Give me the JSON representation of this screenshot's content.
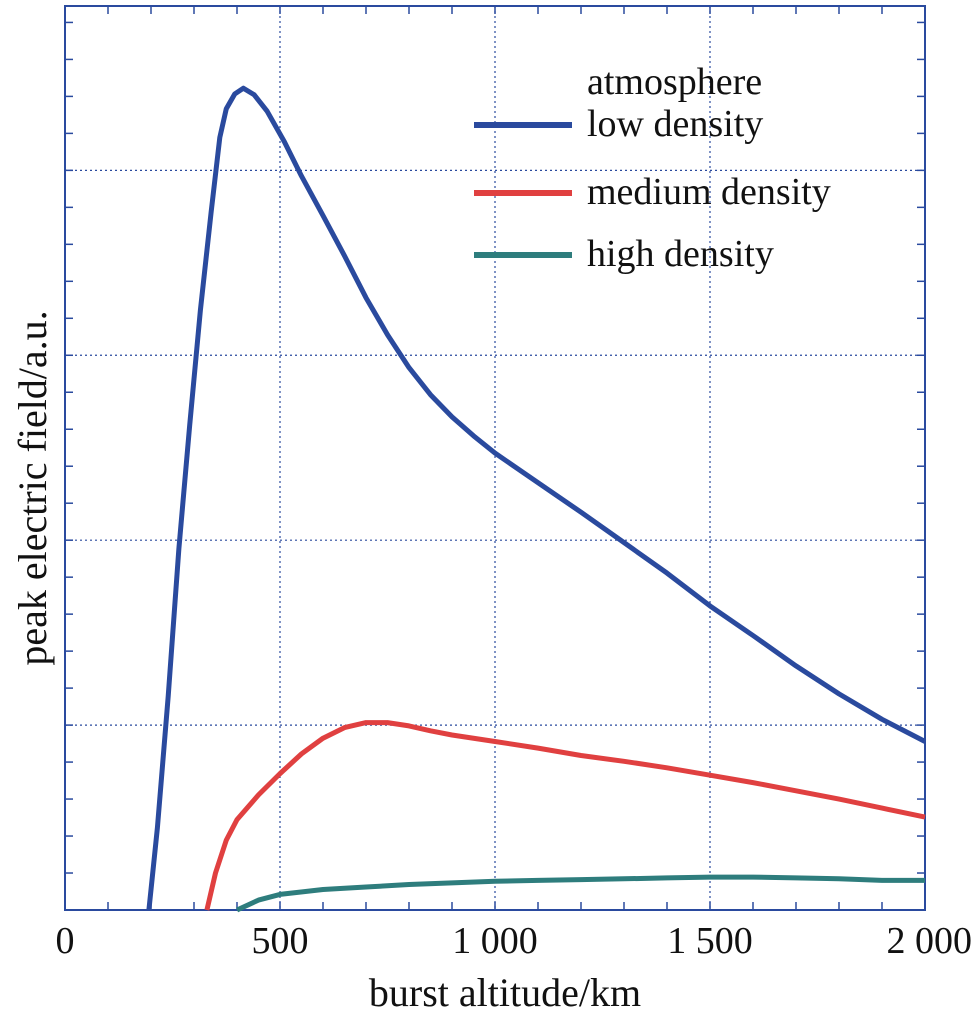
{
  "chart_data": {
    "type": "line",
    "title": "",
    "xlabel": "burst altitude/km",
    "ylabel": "peak electric field/a.u.",
    "xlim": [
      0,
      2000
    ],
    "ylim": [
      0,
      11
    ],
    "x_ticks": [
      {
        "value": 0,
        "label": "0"
      },
      {
        "value": 500,
        "label": "500"
      },
      {
        "value": 1000,
        "label": "1 000"
      },
      {
        "value": 1500,
        "label": "1 500"
      },
      {
        "value": 2000,
        "label": "2 000"
      }
    ],
    "y_ticks_labeled": false,
    "grid": true,
    "legend": {
      "title": "atmosphere",
      "placement": "top-right"
    },
    "series": [
      {
        "name": "low density",
        "color": "#2a4a9e",
        "points": [
          [
            195,
            0
          ],
          [
            215,
            1.0
          ],
          [
            240,
            2.6
          ],
          [
            265,
            4.4
          ],
          [
            290,
            5.9
          ],
          [
            315,
            7.3
          ],
          [
            340,
            8.5
          ],
          [
            360,
            9.4
          ],
          [
            375,
            9.75
          ],
          [
            395,
            9.93
          ],
          [
            415,
            10.0
          ],
          [
            440,
            9.92
          ],
          [
            470,
            9.72
          ],
          [
            510,
            9.35
          ],
          [
            550,
            8.93
          ],
          [
            600,
            8.45
          ],
          [
            650,
            7.96
          ],
          [
            700,
            7.45
          ],
          [
            750,
            7.0
          ],
          [
            800,
            6.6
          ],
          [
            850,
            6.27
          ],
          [
            900,
            6.0
          ],
          [
            950,
            5.77
          ],
          [
            1000,
            5.56
          ],
          [
            1100,
            5.2
          ],
          [
            1200,
            4.84
          ],
          [
            1300,
            4.47
          ],
          [
            1400,
            4.1
          ],
          [
            1500,
            3.7
          ],
          [
            1600,
            3.34
          ],
          [
            1700,
            2.97
          ],
          [
            1800,
            2.63
          ],
          [
            1900,
            2.32
          ],
          [
            2000,
            2.05
          ]
        ]
      },
      {
        "name": "medium density",
        "color": "#e04040",
        "points": [
          [
            330,
            0
          ],
          [
            350,
            0.45
          ],
          [
            375,
            0.85
          ],
          [
            400,
            1.1
          ],
          [
            450,
            1.4
          ],
          [
            500,
            1.66
          ],
          [
            550,
            1.9
          ],
          [
            600,
            2.09
          ],
          [
            650,
            2.22
          ],
          [
            700,
            2.28
          ],
          [
            750,
            2.28
          ],
          [
            800,
            2.24
          ],
          [
            850,
            2.18
          ],
          [
            900,
            2.13
          ],
          [
            1000,
            2.05
          ],
          [
            1100,
            1.97
          ],
          [
            1200,
            1.88
          ],
          [
            1300,
            1.81
          ],
          [
            1400,
            1.73
          ],
          [
            1500,
            1.64
          ],
          [
            1600,
            1.55
          ],
          [
            1700,
            1.45
          ],
          [
            1800,
            1.35
          ],
          [
            1900,
            1.24
          ],
          [
            2000,
            1.13
          ]
        ]
      },
      {
        "name": "high density",
        "color": "#2e7d7d",
        "points": [
          [
            400,
            0
          ],
          [
            450,
            0.12
          ],
          [
            500,
            0.19
          ],
          [
            600,
            0.25
          ],
          [
            700,
            0.28
          ],
          [
            800,
            0.31
          ],
          [
            900,
            0.33
          ],
          [
            1000,
            0.35
          ],
          [
            1100,
            0.36
          ],
          [
            1200,
            0.37
          ],
          [
            1300,
            0.38
          ],
          [
            1400,
            0.39
          ],
          [
            1500,
            0.4
          ],
          [
            1600,
            0.4
          ],
          [
            1700,
            0.39
          ],
          [
            1800,
            0.38
          ],
          [
            1900,
            0.36
          ],
          [
            2000,
            0.36
          ]
        ]
      }
    ]
  }
}
